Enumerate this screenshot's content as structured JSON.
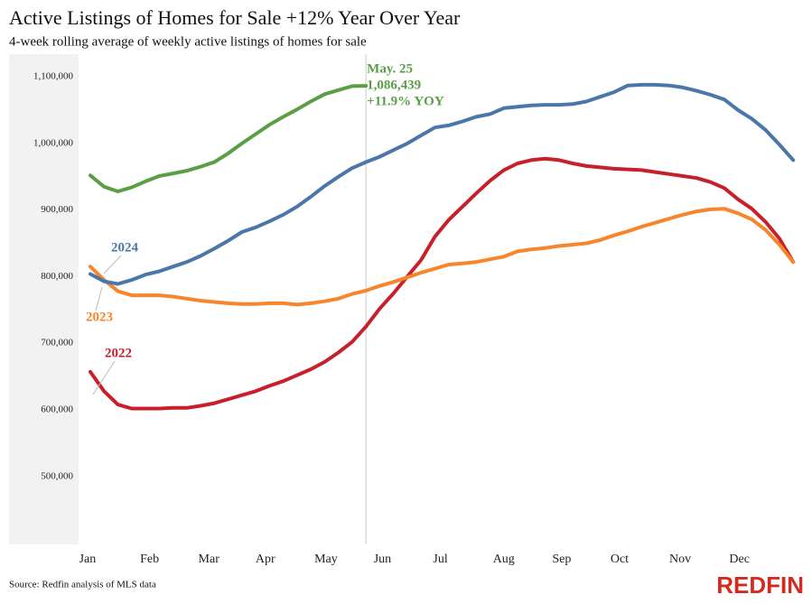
{
  "chart_data": {
    "type": "line",
    "title": "Active Listings of Homes for Sale +12% Year Over Year",
    "subtitle": "4-week rolling average of weekly active listings of homes for sale",
    "source": "Source: Redfin analysis of MLS data",
    "brand": "REDFIN",
    "annotations": [
      "May. 25",
      "1,086,439",
      "+11.9% YOY"
    ],
    "x": [
      1,
      2,
      3,
      4,
      5,
      6,
      7,
      8,
      9,
      10,
      11,
      12,
      13,
      14,
      15,
      16,
      17,
      18,
      19,
      20,
      21,
      22,
      23,
      24,
      25,
      26,
      27,
      28,
      29,
      30,
      31,
      32,
      33,
      34,
      35,
      36,
      37,
      38,
      39,
      40,
      41,
      42,
      43,
      44,
      45,
      46,
      47,
      48,
      49,
      50,
      51,
      52
    ],
    "xlim": [
      0.15,
      53.1
    ],
    "xticks": [
      {
        "value": 0.8,
        "label": "Jan"
      },
      {
        "value": 5.3,
        "label": "Feb"
      },
      {
        "value": 9.6,
        "label": "Mar"
      },
      {
        "value": 13.7,
        "label": "Apr"
      },
      {
        "value": 18.1,
        "label": "May"
      },
      {
        "value": 22.2,
        "label": "Jun"
      },
      {
        "value": 26.4,
        "label": "Jul"
      },
      {
        "value": 31,
        "label": "Aug"
      },
      {
        "value": 35.2,
        "label": "Sep"
      },
      {
        "value": 39.4,
        "label": "Oct"
      },
      {
        "value": 43.8,
        "label": "Nov"
      },
      {
        "value": 48.1,
        "label": "Dec"
      }
    ],
    "ylim": [
      398000,
      1134000
    ],
    "yticks": [
      {
        "value": 500000,
        "label": "500,000"
      },
      {
        "value": 600000,
        "label": "600,000"
      },
      {
        "value": 700000,
        "label": "700,000"
      },
      {
        "value": 800000,
        "label": "800,000"
      },
      {
        "value": 900000,
        "label": "900,000"
      },
      {
        "value": 1000000,
        "label": "1,000,000"
      },
      {
        "value": 1100000,
        "label": "1,100,000"
      }
    ],
    "grid": false,
    "series": [
      {
        "name": "2022",
        "color": "#c8202a",
        "values": [
          657000,
          628000,
          608000,
          602000,
          602000,
          602000,
          603000,
          603000,
          606000,
          610000,
          616000,
          622000,
          628000,
          636000,
          643000,
          652000,
          661000,
          672000,
          686000,
          702000,
          725000,
          752000,
          775000,
          800000,
          825000,
          860000,
          885000,
          905000,
          925000,
          944000,
          960000,
          970000,
          975000,
          977000,
          975000,
          970000,
          966000,
          964000,
          962000,
          961000,
          960000,
          957000,
          954000,
          951000,
          948000,
          942000,
          933000,
          916000,
          902000,
          882000,
          857000,
          822000
        ]
      },
      {
        "name": "2023",
        "color": "#f7852c",
        "values": [
          815000,
          795000,
          778000,
          772000,
          772000,
          772000,
          770000,
          767000,
          764000,
          762000,
          760000,
          759000,
          759000,
          760000,
          760000,
          758000,
          760000,
          763000,
          767000,
          774000,
          779000,
          786000,
          792000,
          799000,
          806000,
          812000,
          818000,
          820000,
          822000,
          826000,
          830000,
          838000,
          841000,
          843000,
          846000,
          848000,
          850000,
          855000,
          862000,
          868000,
          875000,
          881000,
          887000,
          893000,
          898000,
          901000,
          902000,
          895000,
          886000,
          870000,
          848000,
          822000
        ]
      },
      {
        "name": "2024",
        "color": "#4a76a8",
        "values": [
          804000,
          793000,
          789000,
          795000,
          803000,
          808000,
          815000,
          822000,
          831000,
          842000,
          854000,
          867000,
          874000,
          883000,
          893000,
          905000,
          920000,
          936000,
          950000,
          963000,
          972000,
          980000,
          990000,
          1000000,
          1012000,
          1024000,
          1027000,
          1033000,
          1040000,
          1044000,
          1053000,
          1055000,
          1057000,
          1058000,
          1058000,
          1059000,
          1063000,
          1070000,
          1077000,
          1087000,
          1088000,
          1088000,
          1087000,
          1084000,
          1079000,
          1073000,
          1066000,
          1050000,
          1037000,
          1020000,
          998000,
          975000
        ]
      },
      {
        "color": "#5a9e46",
        "values": [
          952000,
          935000,
          928000,
          934000,
          943000,
          951000,
          955000,
          959000,
          965000,
          972000,
          985000,
          1000000,
          1014000,
          1028000,
          1040000,
          1051000,
          1063000,
          1074000,
          1080000,
          1086000,
          1086439,
          null,
          null,
          null,
          null,
          null,
          null,
          null,
          null,
          null,
          null,
          null,
          null,
          null,
          null,
          null,
          null,
          null,
          null,
          null,
          null,
          null,
          null,
          null,
          null,
          null,
          null,
          null,
          null,
          null,
          null,
          null
        ]
      }
    ]
  }
}
